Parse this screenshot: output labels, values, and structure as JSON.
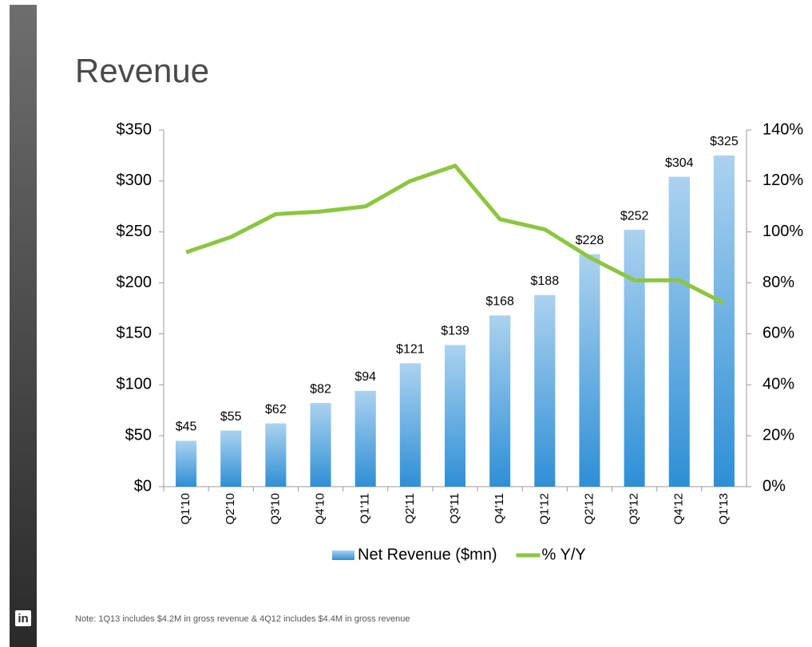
{
  "chart_data": {
    "type": "bar",
    "title": "Revenue",
    "categories": [
      "Q1'10",
      "Q2'10",
      "Q3'10",
      "Q4'10",
      "Q1'11",
      "Q2'11",
      "Q3'11",
      "Q4'11",
      "Q1'12",
      "Q2'12",
      "Q3'12",
      "Q4'12",
      "Q1'13"
    ],
    "series": [
      {
        "name": "Net Revenue ($mn)",
        "type": "bar",
        "color": "#2e8fd6",
        "values": [
          45,
          55,
          62,
          82,
          94,
          121,
          139,
          168,
          188,
          228,
          252,
          304,
          325
        ],
        "value_labels": [
          "$45",
          "$55",
          "$62",
          "$82",
          "$94",
          "$121",
          "$139",
          "$168",
          "$188",
          "$228",
          "$252",
          "$304",
          "$325"
        ]
      },
      {
        "name": "% Y/Y",
        "type": "line",
        "axis": "y2",
        "color": "#8cc63f",
        "values": [
          92,
          98,
          107,
          108,
          110,
          120,
          126,
          105,
          101,
          90,
          81,
          81,
          72
        ]
      }
    ],
    "ylim": [
      0,
      350
    ],
    "yticks": [
      {
        "value": 0,
        "label": "$0"
      },
      {
        "value": 50,
        "label": "$50"
      },
      {
        "value": 100,
        "label": "$100"
      },
      {
        "value": 150,
        "label": "$150"
      },
      {
        "value": 200,
        "label": "$200"
      },
      {
        "value": 250,
        "label": "$250"
      },
      {
        "value": 300,
        "label": "$300"
      },
      {
        "value": 350,
        "label": "$350"
      }
    ],
    "y2lim": [
      0,
      140
    ],
    "y2ticks": [
      {
        "value": 0,
        "label": "0%"
      },
      {
        "value": 20,
        "label": "20%"
      },
      {
        "value": 40,
        "label": "40%"
      },
      {
        "value": 60,
        "label": "60%"
      },
      {
        "value": 80,
        "label": "80%"
      },
      {
        "value": 100,
        "label": "100%"
      },
      {
        "value": 120,
        "label": "120%"
      },
      {
        "value": 140,
        "label": "140%"
      }
    ],
    "grid": false,
    "legend": "bottom",
    "note": "Note: 1Q13 includes $4.2M in gross revenue & 4Q12 includes $4.4M in gross revenue",
    "logo": "in"
  }
}
